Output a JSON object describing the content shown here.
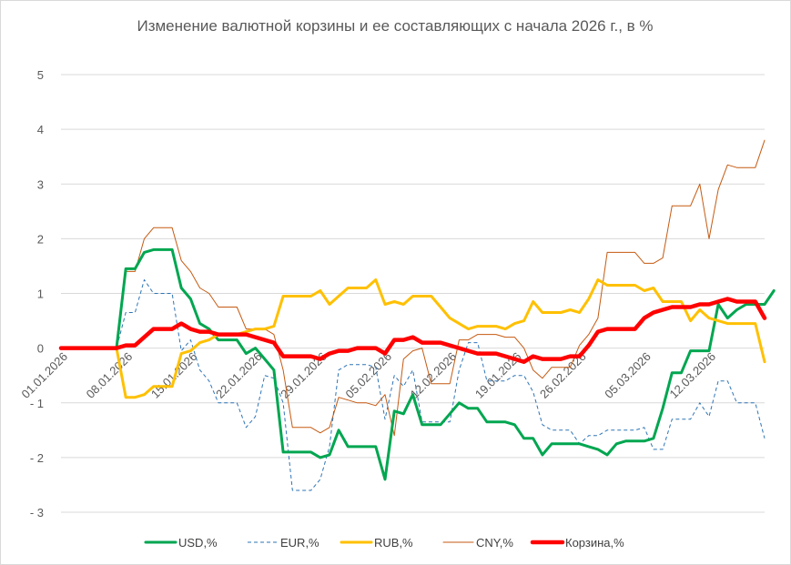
{
  "chart_data": {
    "type": "line",
    "title": "Изменение валютной корзины и ее составляющих с начала 2026 г., в %",
    "xlabel": "",
    "ylabel": "",
    "ylim": [
      -3,
      5
    ],
    "yticks": [
      5,
      4,
      3,
      2,
      1,
      0,
      -1,
      -2,
      -3
    ],
    "ytick_labels": [
      "5",
      "4",
      "3",
      "2",
      "1",
      "0",
      "- 1",
      "- 2",
      "- 3"
    ],
    "grid": "horizontal",
    "legend_position": "bottom",
    "x_tick_labels": [
      "01.01.2026",
      "08.01.2026",
      "15.01.2026",
      "22.01.2026",
      "29.01.2026",
      "05.02.2026",
      "12.02.2026",
      "19.01.2026",
      "26.02.2026",
      "05.03.2026",
      "12.03.2026"
    ],
    "x_tick_index": [
      0,
      7,
      14,
      21,
      28,
      35,
      42,
      49,
      56,
      63,
      70
    ],
    "series": [
      {
        "name": "CNY,%",
        "color": "#C55A11",
        "style": "thin",
        "values": [
          0,
          0,
          0,
          0,
          0,
          0,
          0,
          1.4,
          1.4,
          2.0,
          2.2,
          2.2,
          2.2,
          1.6,
          1.4,
          1.1,
          1.0,
          0.75,
          0.75,
          0.75,
          0.35,
          0.35,
          0.35,
          0.25,
          -0.4,
          -1.45,
          -1.45,
          -1.45,
          -1.55,
          -1.45,
          -0.9,
          -0.95,
          -1.0,
          -1.0,
          -1.05,
          -0.85,
          -1.6,
          -0.2,
          -0.05,
          0.0,
          -0.65,
          -0.65,
          -0.65,
          0.15,
          0.15,
          0.25,
          0.25,
          0.25,
          0.2,
          0.2,
          0.0,
          -0.4,
          -0.55,
          -0.35,
          -0.35,
          -0.35,
          0.05,
          0.25,
          0.55,
          1.75,
          1.75,
          1.75,
          1.75,
          1.55,
          1.55,
          1.65,
          2.6,
          2.6,
          2.6,
          3.0,
          2.0,
          2.9,
          3.35,
          3.3,
          3.3,
          3.3,
          3.8
        ]
      },
      {
        "name": "EUR,%",
        "color": "#2E75B6",
        "style": "dashed",
        "values": [
          0,
          0,
          0,
          0,
          0,
          0,
          0,
          0.65,
          0.65,
          1.25,
          1.0,
          1.0,
          1.0,
          -0.05,
          0.15,
          -0.4,
          -0.6,
          -1.0,
          -1.0,
          -1.0,
          -1.45,
          -1.25,
          -0.5,
          -0.55,
          -1.0,
          -2.6,
          -2.6,
          -2.6,
          -2.4,
          -1.8,
          -0.4,
          -0.3,
          -0.3,
          -0.3,
          -0.35,
          -1.3,
          -0.5,
          -0.7,
          -0.4,
          -1.35,
          -1.35,
          -1.35,
          -1.35,
          -0.4,
          0.1,
          0.1,
          -0.6,
          -0.6,
          -0.6,
          -0.5,
          -0.5,
          -0.8,
          -1.4,
          -1.5,
          -1.5,
          -1.5,
          -1.75,
          -1.6,
          -1.6,
          -1.5,
          -1.5,
          -1.5,
          -1.5,
          -1.45,
          -1.85,
          -1.85,
          -1.3,
          -1.3,
          -1.3,
          -1.0,
          -1.25,
          -0.6,
          -0.6,
          -1.0,
          -1.0,
          -1.0,
          -1.65
        ]
      },
      {
        "name": "USD,%",
        "color": "#00A650",
        "style": "medium",
        "values": [
          0,
          0,
          0,
          0,
          0,
          0,
          0,
          1.45,
          1.45,
          1.75,
          1.8,
          1.8,
          1.8,
          1.1,
          0.9,
          0.45,
          0.35,
          0.15,
          0.15,
          0.15,
          -0.1,
          0.0,
          -0.2,
          -0.4,
          -1.9,
          -1.9,
          -1.9,
          -1.9,
          -2.0,
          -1.95,
          -1.5,
          -1.8,
          -1.8,
          -1.8,
          -1.8,
          -2.4,
          -1.15,
          -1.2,
          -0.85,
          -1.4,
          -1.4,
          -1.4,
          -1.2,
          -1.0,
          -1.1,
          -1.1,
          -1.35,
          -1.35,
          -1.35,
          -1.4,
          -1.65,
          -1.65,
          -1.95,
          -1.75,
          -1.75,
          -1.75,
          -1.75,
          -1.8,
          -1.85,
          -1.95,
          -1.75,
          -1.7,
          -1.7,
          -1.7,
          -1.65,
          -1.1,
          -0.45,
          -0.45,
          -0.05,
          -0.05,
          -0.05,
          0.8,
          0.55,
          0.7,
          0.8,
          0.8,
          0.8,
          1.05
        ]
      },
      {
        "name": "RUB,%",
        "color": "#FFC000",
        "style": "medium",
        "values": [
          0,
          0,
          0,
          0,
          0,
          0,
          0,
          -0.9,
          -0.9,
          -0.85,
          -0.7,
          -0.7,
          -0.7,
          -0.1,
          -0.05,
          0.1,
          0.15,
          0.25,
          0.25,
          0.25,
          0.3,
          0.35,
          0.35,
          0.4,
          0.95,
          0.95,
          0.95,
          0.95,
          1.05,
          0.8,
          0.95,
          1.1,
          1.1,
          1.1,
          1.25,
          0.8,
          0.85,
          0.8,
          0.95,
          0.95,
          0.95,
          0.75,
          0.55,
          0.45,
          0.35,
          0.4,
          0.4,
          0.4,
          0.35,
          0.45,
          0.5,
          0.85,
          0.65,
          0.65,
          0.65,
          0.7,
          0.65,
          0.9,
          1.25,
          1.15,
          1.15,
          1.15,
          1.15,
          1.05,
          1.1,
          0.85,
          0.85,
          0.85,
          0.5,
          0.7,
          0.55,
          0.5,
          0.45,
          0.45,
          0.45,
          0.45,
          -0.25
        ]
      },
      {
        "name": "Корзина,%",
        "color": "#FF0000",
        "style": "thick",
        "values": [
          0,
          0,
          0,
          0,
          0,
          0,
          0,
          0.05,
          0.05,
          0.2,
          0.35,
          0.35,
          0.35,
          0.45,
          0.35,
          0.3,
          0.3,
          0.25,
          0.25,
          0.25,
          0.25,
          0.2,
          0.15,
          0.1,
          -0.15,
          -0.15,
          -0.15,
          -0.15,
          -0.2,
          -0.1,
          -0.05,
          -0.05,
          0.0,
          0.0,
          0.0,
          -0.1,
          0.15,
          0.15,
          0.2,
          0.1,
          0.1,
          0.1,
          0.05,
          0.0,
          -0.05,
          -0.1,
          -0.1,
          -0.1,
          -0.15,
          -0.2,
          -0.25,
          -0.15,
          -0.2,
          -0.2,
          -0.2,
          -0.15,
          -0.15,
          0.05,
          0.3,
          0.35,
          0.35,
          0.35,
          0.35,
          0.55,
          0.65,
          0.7,
          0.75,
          0.75,
          0.75,
          0.8,
          0.8,
          0.85,
          0.9,
          0.85,
          0.85,
          0.85,
          0.55
        ]
      }
    ],
    "legend": [
      {
        "name": "USD,%",
        "color": "#00A650",
        "style": "medium"
      },
      {
        "name": "EUR,%",
        "color": "#2E75B6",
        "style": "dashed"
      },
      {
        "name": "RUB,%",
        "color": "#FFC000",
        "style": "medium"
      },
      {
        "name": "CNY,%",
        "color": "#C55A11",
        "style": "thin"
      },
      {
        "name": "Корзина,%",
        "color": "#FF0000",
        "style": "thick"
      }
    ]
  }
}
